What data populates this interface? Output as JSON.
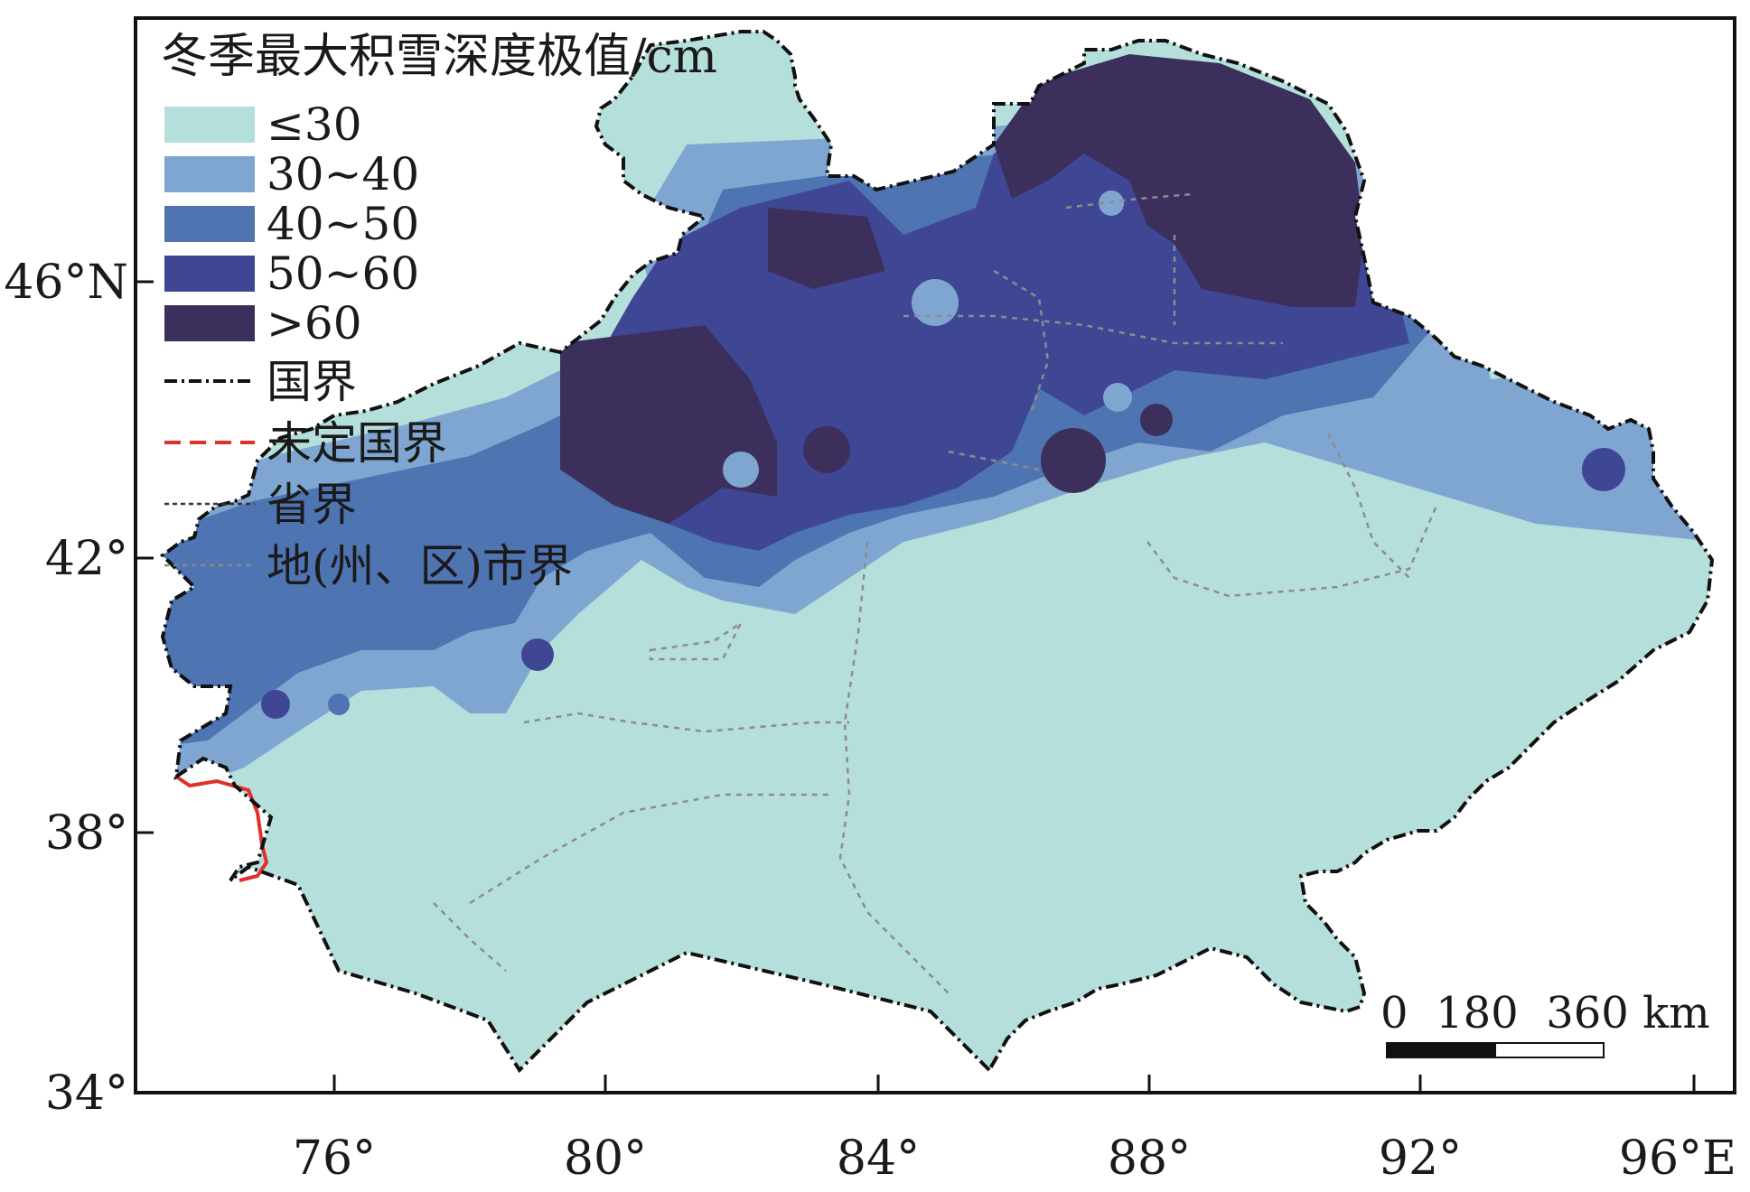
{
  "legend": {
    "title": "冬季最大积雪深度极值/cm",
    "classes": [
      {
        "label": "≤30",
        "color": "#b5dfda"
      },
      {
        "label": "30~40",
        "color": "#7fa6d1"
      },
      {
        "label": "40~50",
        "color": "#4e74b2"
      },
      {
        "label": "50~60",
        "color": "#3f4795"
      },
      {
        "label": ">60",
        "color": "#3c2f5c"
      }
    ],
    "lines": [
      {
        "label": "国界",
        "style": "dash-dot",
        "color": "#111111"
      },
      {
        "label": "未定国界",
        "style": "dashed",
        "color": "#e0302a"
      },
      {
        "label": "省界",
        "style": "dotted",
        "color": "#333333"
      },
      {
        "label": "地(州、区)市界",
        "style": "dotted",
        "color": "#888888"
      }
    ]
  },
  "axes": {
    "y_ticks": [
      "46°N",
      "42°",
      "38°",
      "34°"
    ],
    "x_ticks": [
      "76°",
      "80°",
      "84°",
      "88°",
      "92°",
      "96°E"
    ]
  },
  "scale_bar": {
    "label": "0  180  360 km"
  },
  "colors": {
    "frame": "#111111",
    "background": "#ffffff"
  }
}
